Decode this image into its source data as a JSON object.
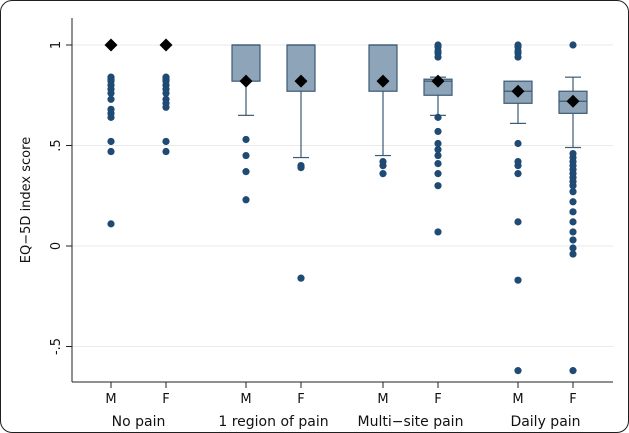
{
  "chart_data": {
    "type": "box",
    "ylabel": "EQ−5D index score",
    "ylim": [
      -0.7,
      1.1
    ],
    "yticks": [
      {
        "value": 1,
        "label": "1"
      },
      {
        "value": 0.5,
        "label": ".5"
      },
      {
        "value": 0,
        "label": "0"
      },
      {
        "value": -0.5,
        "label": "-.5"
      }
    ],
    "grid": true,
    "colors": {
      "box_fill": "#8ea4b8",
      "box_stroke": "#3d5a73",
      "dot": "#1f4a73",
      "mean": "#000000"
    },
    "groups": [
      {
        "label": "No pain",
        "series": [
          {
            "label": "M",
            "box": null,
            "mean": 1.0,
            "outliers": [
              0.84,
              0.83,
              0.82,
              0.8,
              0.78,
              0.76,
              0.73,
              0.68,
              0.66,
              0.64,
              0.52,
              0.47,
              0.11
            ]
          },
          {
            "label": "F",
            "box": null,
            "mean": 1.0,
            "outliers": [
              0.84,
              0.83,
              0.82,
              0.8,
              0.78,
              0.76,
              0.73,
              0.71,
              0.69,
              0.52,
              0.47
            ]
          }
        ]
      },
      {
        "label": "1 region of pain",
        "series": [
          {
            "label": "M",
            "box": {
              "q1": 0.82,
              "median": 1.0,
              "q3": 1.0,
              "whisker_low": 0.65,
              "whisker_high": 1.0
            },
            "mean": 0.82,
            "outliers": [
              0.53,
              0.45,
              0.37,
              0.23
            ]
          },
          {
            "label": "F",
            "box": {
              "q1": 0.77,
              "median": 1.0,
              "q3": 1.0,
              "whisker_low": 0.44,
              "whisker_high": 1.0
            },
            "mean": 0.82,
            "outliers": [
              0.4,
              0.39,
              -0.16
            ]
          }
        ]
      },
      {
        "label": "Multi−site pain",
        "series": [
          {
            "label": "M",
            "box": {
              "q1": 0.77,
              "median": 1.0,
              "q3": 1.0,
              "whisker_low": 0.45,
              "whisker_high": 1.0
            },
            "mean": 0.82,
            "outliers": [
              0.42,
              0.4,
              0.36
            ]
          },
          {
            "label": "F",
            "box": {
              "q1": 0.75,
              "median": 0.82,
              "q3": 0.83,
              "whisker_low": 0.65,
              "whisker_high": 0.84
            },
            "mean": 0.82,
            "outliers": [
              1.0,
              0.99,
              0.97,
              0.96,
              0.94,
              0.64,
              0.57,
              0.51,
              0.48,
              0.45,
              0.41,
              0.36,
              0.3,
              0.07
            ]
          }
        ]
      },
      {
        "label": "Daily pain",
        "series": [
          {
            "label": "M",
            "box": {
              "q1": 0.71,
              "median": 0.77,
              "q3": 0.82,
              "whisker_low": 0.61,
              "whisker_high": 0.82
            },
            "mean": 0.77,
            "outliers": [
              1.0,
              0.99,
              0.97,
              0.96,
              0.94,
              0.51,
              0.42,
              0.4,
              0.36,
              0.12,
              -0.17,
              -0.62
            ]
          },
          {
            "label": "F",
            "box": {
              "q1": 0.66,
              "median": 0.72,
              "q3": 0.77,
              "whisker_low": 0.49,
              "whisker_high": 0.84
            },
            "mean": 0.72,
            "outliers": [
              1.0,
              0.46,
              0.44,
              0.42,
              0.4,
              0.38,
              0.36,
              0.34,
              0.32,
              0.3,
              0.27,
              0.22,
              0.17,
              0.12,
              0.07,
              0.03,
              -0.01,
              -0.04,
              -0.62
            ]
          }
        ]
      }
    ]
  }
}
